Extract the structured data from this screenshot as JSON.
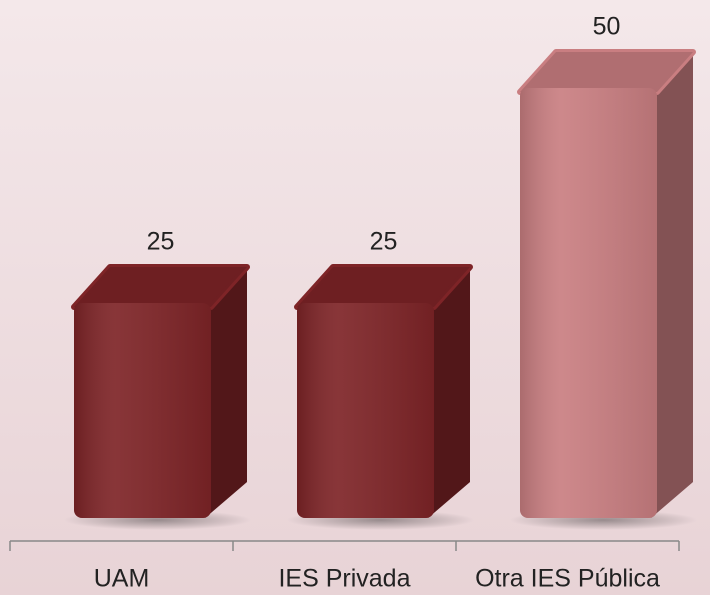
{
  "chart_data": {
    "type": "bar3d",
    "categories": [
      "UAM",
      "IES Privada",
      "Otra IES Pública"
    ],
    "values": [
      25,
      25,
      50
    ],
    "colors": [
      "#7e2427",
      "#7e2427",
      "#c97e81"
    ]
  }
}
